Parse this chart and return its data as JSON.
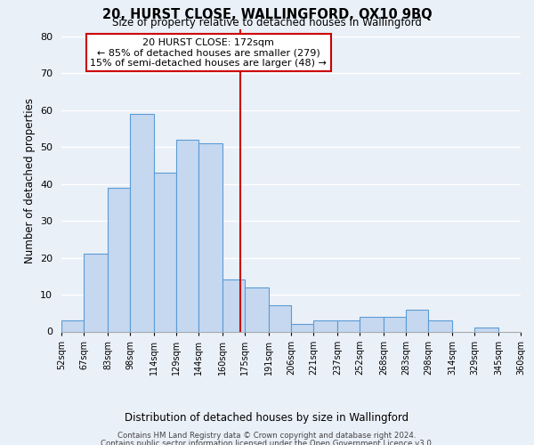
{
  "title": "20, HURST CLOSE, WALLINGFORD, OX10 9BQ",
  "subtitle": "Size of property relative to detached houses in Wallingford",
  "xlabel": "Distribution of detached houses by size in Wallingford",
  "ylabel": "Number of detached properties",
  "bin_edges": [
    52,
    67,
    83,
    98,
    114,
    129,
    144,
    160,
    175,
    191,
    206,
    221,
    237,
    252,
    268,
    283,
    298,
    314,
    329,
    345,
    360
  ],
  "bar_heights": [
    3,
    21,
    39,
    59,
    43,
    52,
    51,
    14,
    12,
    7,
    2,
    3,
    3,
    4,
    4,
    6,
    3,
    0,
    1,
    0
  ],
  "bar_color": "#c5d8f0",
  "bar_edge_color": "#5b9bd5",
  "tick_labels": [
    "52sqm",
    "67sqm",
    "83sqm",
    "98sqm",
    "114sqm",
    "129sqm",
    "144sqm",
    "160sqm",
    "175sqm",
    "191sqm",
    "206sqm",
    "221sqm",
    "237sqm",
    "252sqm",
    "268sqm",
    "283sqm",
    "298sqm",
    "314sqm",
    "329sqm",
    "345sqm",
    "360sqm"
  ],
  "vline_x": 172,
  "vline_color": "#cc0000",
  "annotation_title": "20 HURST CLOSE: 172sqm",
  "annotation_line1": "← 85% of detached houses are smaller (279)",
  "annotation_line2": "15% of semi-detached houses are larger (48) →",
  "annotation_box_color": "#ffffff",
  "annotation_box_edge": "#cc0000",
  "ylim": [
    0,
    82
  ],
  "yticks": [
    0,
    10,
    20,
    30,
    40,
    50,
    60,
    70,
    80
  ],
  "bg_color": "#eaf0f8",
  "grid_color": "#ffffff",
  "footer1": "Contains HM Land Registry data © Crown copyright and database right 2024.",
  "footer2": "Contains public sector information licensed under the Open Government Licence v3.0."
}
